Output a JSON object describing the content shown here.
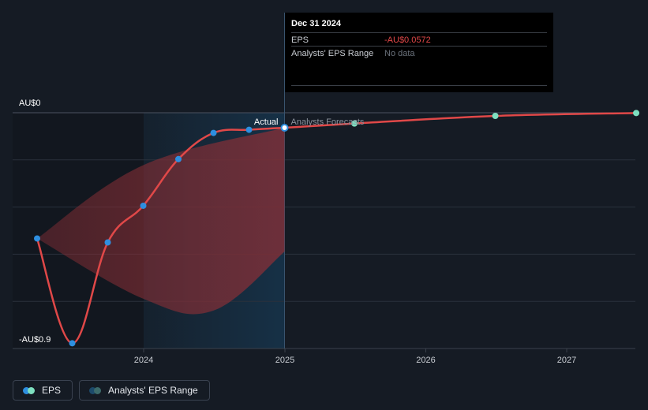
{
  "chart_data": {
    "type": "line",
    "y_top_label": "AU$0",
    "y_bottom_label": "-AU$0.9",
    "ylim": [
      -0.9,
      0
    ],
    "x_ticks": [
      "2024",
      "2025",
      "2026",
      "2027"
    ],
    "divider_labels": {
      "actual": "Actual",
      "forecast": "Analysts Forecasts"
    },
    "series": [
      {
        "name": "EPS",
        "kind": "actual",
        "points": [
          {
            "x": "2023-03-31",
            "y": -0.48
          },
          {
            "x": "2023-06-30",
            "y": -0.88
          },
          {
            "x": "2023-09-30",
            "y": -0.495
          },
          {
            "x": "2023-12-31",
            "y": -0.355
          },
          {
            "x": "2024-03-31",
            "y": -0.177
          },
          {
            "x": "2024-06-30",
            "y": -0.077
          },
          {
            "x": "2024-09-30",
            "y": -0.065
          },
          {
            "x": "2024-12-31",
            "y": -0.0572
          }
        ]
      },
      {
        "name": "EPS",
        "kind": "forecast",
        "points": [
          {
            "x": "2024-12-31",
            "y": -0.0572
          },
          {
            "x": "2025-06-30",
            "y": -0.041
          },
          {
            "x": "2026-06-30",
            "y": -0.012
          },
          {
            "x": "2027-06-30",
            "y": -0.001
          }
        ]
      }
    ],
    "range_band": {
      "name": "Analysts' EPS Range",
      "upper": [
        {
          "x": "2023-03-31",
          "y": -0.48
        },
        {
          "x": "2023-12-31",
          "y": -0.2
        },
        {
          "x": "2024-12-31",
          "y": -0.0572
        }
      ],
      "lower": [
        {
          "x": "2023-03-31",
          "y": -0.48
        },
        {
          "x": "2023-12-31",
          "y": -0.71
        },
        {
          "x": "2024-06-30",
          "y": -0.755
        },
        {
          "x": "2024-12-31",
          "y": -0.53
        }
      ]
    },
    "grid": true
  },
  "tooltip": {
    "date": "Dec 31 2024",
    "rows": [
      {
        "label": "EPS",
        "value": "-AU$0.0572"
      },
      {
        "label": "Analysts' EPS Range",
        "value": "No data"
      }
    ]
  },
  "legend": {
    "items": [
      {
        "label": "EPS"
      },
      {
        "label": "Analysts' EPS Range"
      }
    ]
  },
  "colors": {
    "background": "#151b24",
    "eps_line": "#e04848",
    "actual_marker": "#2e8fe0",
    "forecast_marker": "#7ee0c0",
    "band_fill": "#8a2f36",
    "forecast_region": "#16334a",
    "value_negative": "#e24848",
    "value_muted": "#6b727c",
    "legend_eps_dot_1": "#2e8fe0",
    "legend_eps_dot_2": "#7ee0c0",
    "legend_range_dot_1": "#1c4a6a",
    "legend_range_dot_2": "#3c6a6a"
  }
}
